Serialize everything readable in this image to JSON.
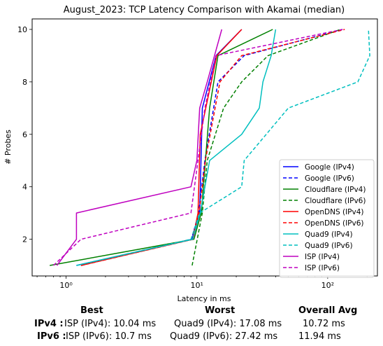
{
  "chart_data": {
    "type": "line",
    "title": "August_2023: TCP Latency Comparison with Akamai (median)",
    "xlabel": "Latency in ms",
    "ylabel": "# Probes",
    "xscale": "log",
    "xlim": [
      0.55,
      240
    ],
    "ylim": [
      0.6,
      10.4
    ],
    "xticks": [
      {
        "v": 1,
        "label": "10⁰"
      },
      {
        "v": 10,
        "label": "10¹"
      },
      {
        "v": 100,
        "label": "10²"
      }
    ],
    "yticks": [
      2,
      4,
      6,
      8,
      10
    ],
    "grid": false,
    "legend_position": "lower-right",
    "series": [
      {
        "name": "Google (IPv4)",
        "color": "#0000ff",
        "dash": false,
        "x": [
          1.2,
          9.2,
          10.5,
          11.0,
          14.0,
          22.0
        ],
        "y": [
          1,
          2,
          3,
          7,
          9,
          10
        ]
      },
      {
        "name": "Google (IPv6)",
        "color": "#0000ff",
        "dash": true,
        "x": [
          1.3,
          9.1,
          10.3,
          11.5,
          14.5,
          23.0,
          130
        ],
        "y": [
          1,
          2,
          3,
          5,
          8,
          9,
          10
        ]
      },
      {
        "name": "Cloudflare (IPv4)",
        "color": "#008000",
        "dash": false,
        "x": [
          0.75,
          9.5,
          10.8,
          12.5,
          14.5,
          38
        ],
        "y": [
          1,
          2,
          3,
          7,
          9,
          10
        ]
      },
      {
        "name": "Cloudflare (IPv6)",
        "color": "#008000",
        "dash": true,
        "x": [
          9.2,
          11.0,
          12.0,
          16.0,
          22.0,
          35.0,
          125
        ],
        "y": [
          1,
          3,
          5,
          7,
          8,
          9,
          10
        ]
      },
      {
        "name": "OpenDNS (IPv4)",
        "color": "#ff0000",
        "dash": false,
        "x": [
          1.3,
          9.3,
          10.2,
          10.6,
          14.2,
          22.0
        ],
        "y": [
          1,
          2,
          3,
          6,
          9,
          10
        ]
      },
      {
        "name": "OpenDNS (IPv6)",
        "color": "#ff0000",
        "dash": true,
        "x": [
          1.3,
          9.4,
          10.4,
          11.6,
          15.0,
          22.0,
          135
        ],
        "y": [
          1,
          2,
          3,
          5,
          8,
          9,
          10
        ]
      },
      {
        "name": "Quad9 (IPv4)",
        "color": "#00bfbf",
        "dash": false,
        "x": [
          1.2,
          9.3,
          10.6,
          12.5,
          22.0,
          30.0,
          32.0,
          37.0,
          40.0
        ],
        "y": [
          1,
          2,
          3,
          5,
          6,
          7,
          8,
          9,
          10
        ]
      },
      {
        "name": "Quad9 (IPv6)",
        "color": "#00bfbf",
        "dash": true,
        "x": [
          1.2,
          9.0,
          10.5,
          22.0,
          23.0,
          50.0,
          170,
          210,
          205
        ],
        "y": [
          1,
          2,
          3,
          4,
          5,
          7,
          8,
          9,
          10
        ]
      },
      {
        "name": "ISP (IPv4)",
        "color": "#bf00bf",
        "dash": false,
        "x": [
          0.85,
          1.2,
          1.2,
          9.0,
          10.0,
          10.5,
          12.0,
          15.5
        ],
        "y": [
          1,
          2,
          3,
          4,
          5,
          7,
          8,
          10
        ]
      },
      {
        "name": "ISP (IPv6)",
        "color": "#bf00bf",
        "dash": true,
        "x": [
          0.8,
          1.3,
          9.0,
          10.2,
          11.5,
          14.0,
          130
        ],
        "y": [
          1,
          2,
          3,
          5,
          7,
          9,
          10
        ]
      }
    ]
  },
  "stats": {
    "headers": {
      "best": "Best",
      "worst": "Worst",
      "avg": "Overall Avg"
    },
    "rows": [
      {
        "label": "IPv4 :",
        "best": "ISP (IPv4): 10.04 ms",
        "worst": "Quad9 (IPv4): 17.08 ms",
        "avg": "10.72 ms"
      },
      {
        "label": "IPv6 :",
        "best": "ISP (IPv6): 10.7 ms",
        "worst": "Quad9 (IPv6): 27.42 ms",
        "avg": "11.94 ms"
      }
    ]
  }
}
